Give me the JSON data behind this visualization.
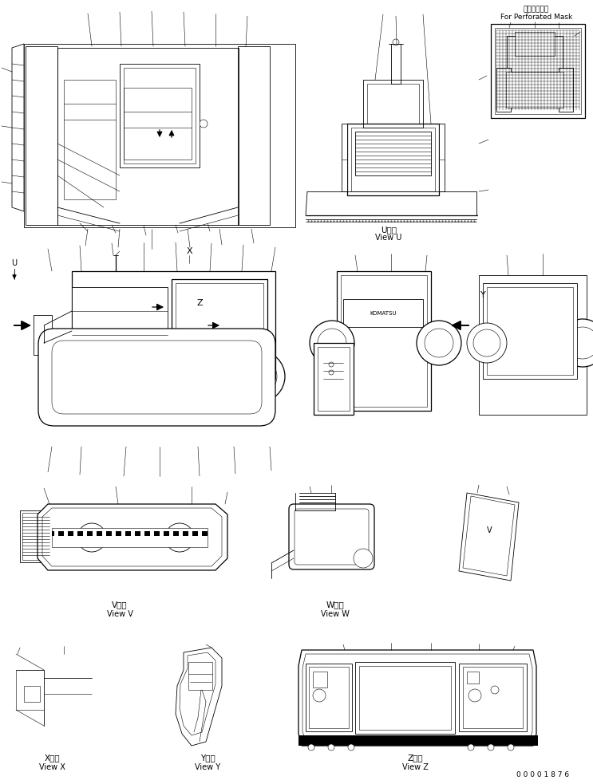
{
  "background_color": "#ffffff",
  "line_color": "#000000",
  "figsize": [
    7.43,
    9.83
  ],
  "dpi": 100,
  "top_right_jp": "丸穴マスク用",
  "top_right_en": "For Perforated Mask",
  "part_number": "0 0 0 0 1 8 7 6",
  "view_U_jp": "U　視",
  "view_U_en": "View U",
  "view_V_jp": "V　視",
  "view_V_en": "View V",
  "view_W_jp": "W　視",
  "view_W_en": "View W",
  "view_X_jp": "X　視",
  "view_X_en": "View X",
  "view_Y_jp": "Y　視",
  "view_Y_en": "View Y",
  "view_Z_jp": "Z　視",
  "view_Z_en": "View Z",
  "label_U": "U",
  "label_X": "X",
  "label_Y": "Y"
}
